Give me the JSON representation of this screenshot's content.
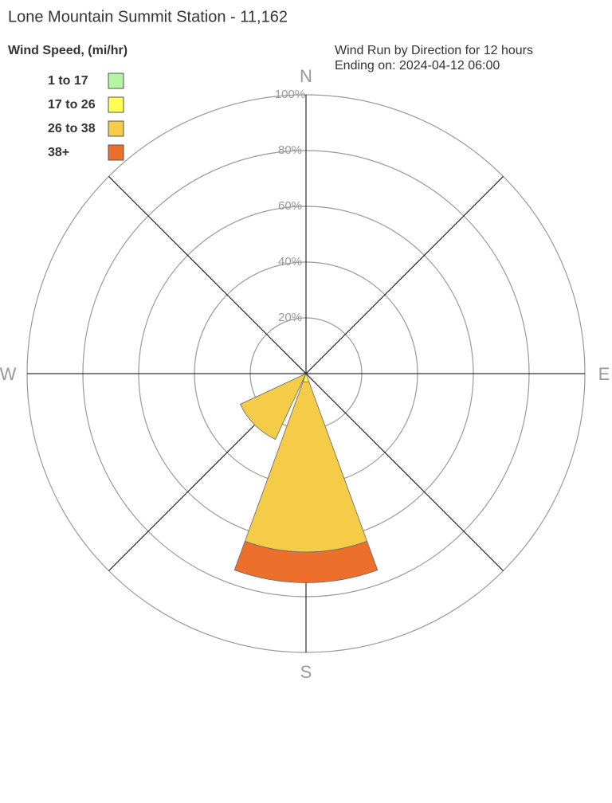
{
  "chart_data": {
    "type": "windrose",
    "title": "Lone Mountain Summit Station - 11,162",
    "legend_title": "Wind Speed, (mi/hr)",
    "subtitle": [
      "Wind Run by Direction for 12 hours",
      "Ending on: 2024-04-12 06:00"
    ],
    "categories": [
      "N",
      null,
      "E",
      null,
      "S",
      null,
      "W",
      null
    ],
    "series": [
      {
        "name": "1 to 17",
        "color": "#b3f5a3",
        "values": [
          0,
          0,
          0,
          0,
          0,
          0,
          0,
          0
        ]
      },
      {
        "name": "17 to 26",
        "color": "#ffff55",
        "values": [
          0,
          0,
          0,
          0,
          3,
          0,
          0,
          0
        ]
      },
      {
        "name": "26 to 38",
        "color": "#f5cc48",
        "values": [
          0,
          0,
          0,
          0,
          61,
          26,
          0,
          0
        ]
      },
      {
        "name": "38+",
        "color": "#ec702c",
        "values": [
          0,
          0,
          0,
          0,
          11,
          0,
          0,
          0
        ]
      }
    ],
    "rlim": [
      0,
      100
    ],
    "rticks": [
      {
        "value": 20,
        "label": "20%"
      },
      {
        "value": 40,
        "label": "40%"
      },
      {
        "value": 60,
        "label": "60%"
      },
      {
        "value": 80,
        "label": "80%"
      },
      {
        "value": 100,
        "label": "100%"
      }
    ],
    "grid": true,
    "legend": "top-left"
  }
}
